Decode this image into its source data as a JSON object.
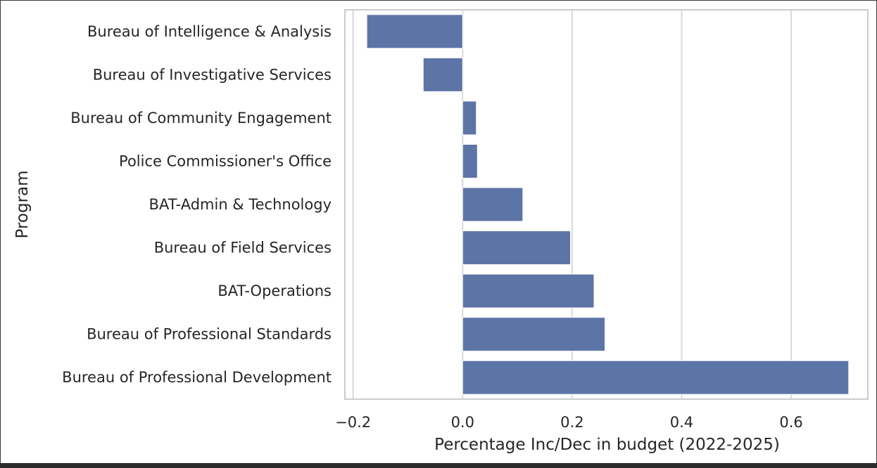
{
  "chart_data": {
    "type": "bar",
    "orientation": "horizontal",
    "categories": [
      "Bureau of Intelligence & Analysis",
      "Bureau of Investigative Services",
      "Bureau of Community Engagement",
      "Police Commissioner's Office",
      "BAT-Admin & Technology",
      "Bureau of Field Services",
      "BAT-Operations",
      "Bureau of Professional Standards",
      "Bureau of Professional Development"
    ],
    "values": [
      -0.175,
      -0.072,
      0.025,
      0.027,
      0.11,
      0.197,
      0.24,
      0.26,
      0.705
    ],
    "xlabel": "Percentage Inc/Dec in budget (2022-2025)",
    "ylabel": "Program",
    "xlim": [
      -0.215,
      0.74
    ],
    "xticks": [
      -0.2,
      0.0,
      0.2,
      0.4,
      0.6
    ],
    "xtick_labels": [
      "−0.2",
      "0.0",
      "0.2",
      "0.4",
      "0.6"
    ],
    "grid": "vertical",
    "legend": "none",
    "bar_color": "#5d75a6",
    "grid_color": "#d9d9d9",
    "spine_color": "#cccccc"
  }
}
